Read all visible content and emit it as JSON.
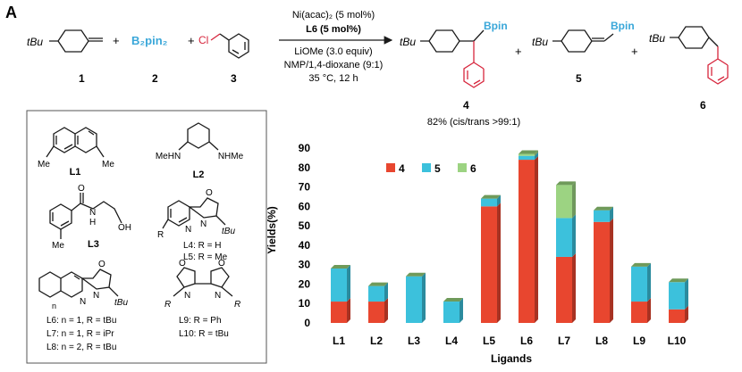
{
  "figure": {
    "panel_label": "A",
    "reaction": {
      "conditions": [
        "Ni(acac)₂ (5 mol%)",
        "L6 (5 mol%)",
        "LiOMe (3.0 equiv)",
        "NMP/1,4-dioxane (9:1)",
        "35 °C, 12 h"
      ],
      "reagent_labels": [
        "tBu",
        "B₂pin₂",
        "Cl"
      ],
      "compound_numbers": [
        "1",
        "2",
        "3",
        "4",
        "5",
        "6"
      ],
      "product_labels": [
        "Bpin",
        "Bpin"
      ],
      "plus": "+",
      "yield_note": "82% (cis/trans >99:1)"
    },
    "ligands": [
      {
        "id": "L1",
        "caption": "L1",
        "subs": [
          "Me",
          "Me"
        ]
      },
      {
        "id": "L2",
        "caption": "L2",
        "subs": [
          "MeHN",
          "NHMe"
        ]
      },
      {
        "id": "L3",
        "caption": "L3",
        "subs": [
          "O",
          "N",
          "H",
          "OH",
          "Me"
        ]
      },
      {
        "id": "L4L5",
        "caption_lines": [
          "L4: R = H",
          "L5: R = Me"
        ],
        "subs": [
          "N",
          "N",
          "O",
          "R",
          "tBu"
        ]
      },
      {
        "id": "L6L8",
        "caption_lines": [
          "L6: n = 1, R = tBu",
          "L7: n = 1, R = iPr",
          "L8: n = 2, R = tBu"
        ],
        "subs": [
          "N",
          "N",
          "O",
          "n",
          "tBu"
        ]
      },
      {
        "id": "L9L10",
        "caption_lines": [
          "L9: R = Ph",
          "L10: R = tBu"
        ],
        "subs": [
          "O",
          "O",
          "N",
          "N",
          "R",
          "R"
        ]
      }
    ]
  },
  "chart_data": {
    "type": "bar",
    "stacked": true,
    "ylabel": "Yields(%)",
    "xlabel": "Ligands",
    "categories": [
      "L1",
      "L2",
      "L3",
      "L4",
      "L5",
      "L6",
      "L7",
      "L8",
      "L9",
      "L10"
    ],
    "series": [
      {
        "name": "4",
        "color": "#e8462f",
        "values": [
          11,
          11,
          0,
          0,
          60,
          84,
          34,
          52,
          11,
          7
        ]
      },
      {
        "name": "5",
        "color": "#3cc1dc",
        "values": [
          17,
          8,
          24,
          11,
          4,
          2,
          20,
          6,
          18,
          14
        ]
      },
      {
        "name": "6",
        "color": "#9cd382",
        "values": [
          0,
          0,
          0,
          0,
          0,
          1,
          17,
          0,
          0,
          0
        ]
      }
    ],
    "ylim": [
      0,
      90
    ],
    "yticks": [
      0,
      10,
      20,
      30,
      40,
      50,
      60,
      70,
      80,
      90
    ],
    "grid": false,
    "legend_position": "top-left"
  }
}
